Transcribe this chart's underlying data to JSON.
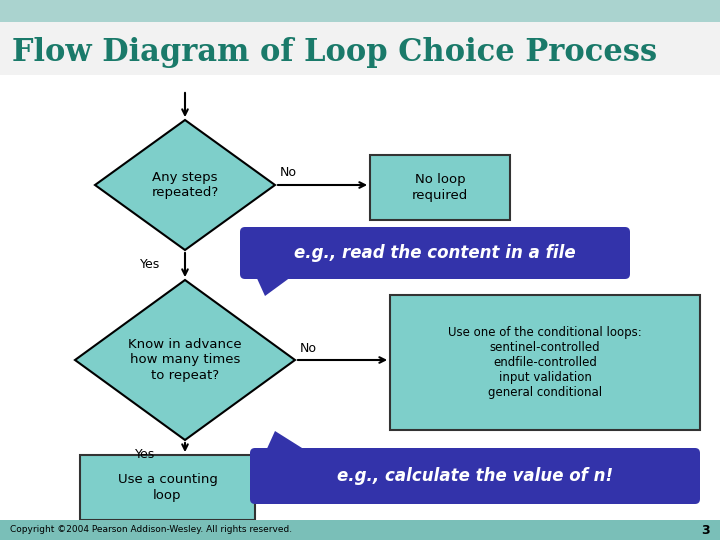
{
  "title": "Flow Diagram of Loop Choice Process",
  "title_color": "#1a7a6a",
  "title_fontsize": 22,
  "bg_color": "#ffffff",
  "header_bg": "#f0f0f0",
  "top_stripe_color": "#7abfb8",
  "diamond1_text": "Any steps\nrepeated?",
  "diamond2_text": "Know in advance\nhow many times\nto repeat?",
  "box_no_loop_text": "No loop\nrequired",
  "box_use_counting_text": "Use a counting\nloop",
  "box_conditional_text": "Use one of the conditional loops:\nsentinel-controlled\nendfile-controlled\ninput validation\ngeneral conditional",
  "callout1_text": "e.g., read the content in a file",
  "callout2_text": "e.g., calculate the value of ",
  "callout2_italic_n": "n",
  "callout2_suffix": "!",
  "diamond_color": "#7ecfca",
  "diamond_edge_color": "#000000",
  "box_teal_color": "#7ecfca",
  "box_edge_color": "#333333",
  "callout_color": "#3333aa",
  "callout_text_color": "#ffffff",
  "arrow_color": "#000000",
  "label_yes": "Yes",
  "label_no": "No",
  "copyright_text": "Copyright ©2004 Pearson Addison-Wesley. All rights reserved.",
  "page_number": "3",
  "bottom_stripe_color": "#7abfb8"
}
